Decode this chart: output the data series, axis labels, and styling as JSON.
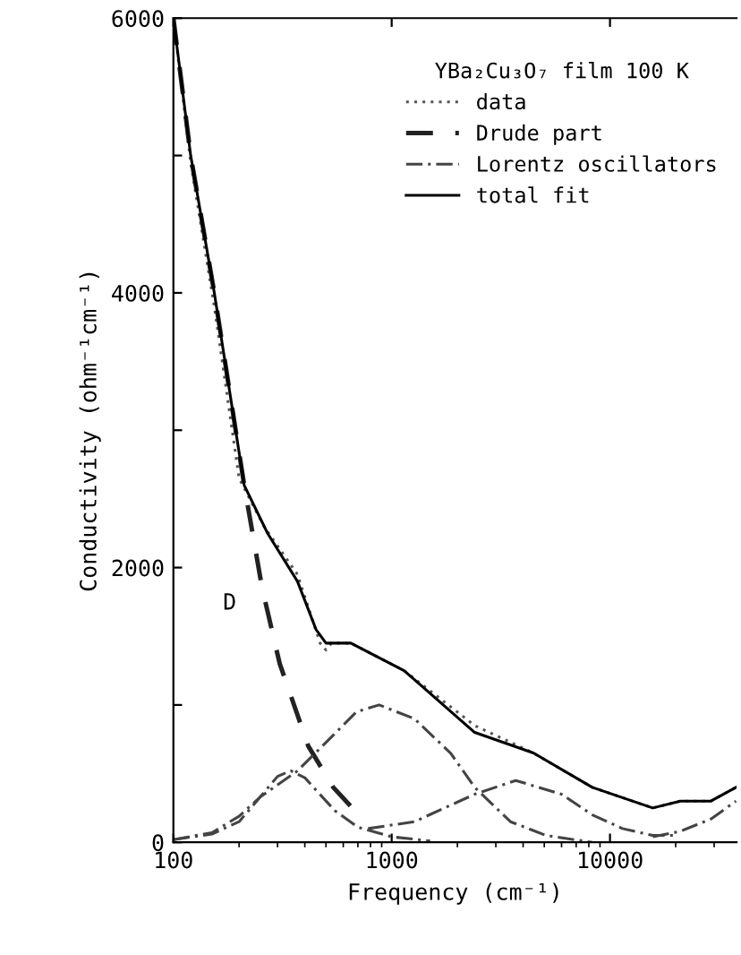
{
  "chart_data": {
    "type": "line",
    "xlabel": "Frequency (cm⁻¹)",
    "ylabel": "Conductivity (ohm⁻¹cm⁻¹)",
    "legend_title": "YBa₂Cu₃O₇ film 100 K",
    "log": "x",
    "xlim": [
      100,
      38000
    ],
    "xticks": [
      100,
      1000,
      10000
    ],
    "ylim": [
      0,
      6000
    ],
    "yticks": [
      0,
      {
        "value": 1000,
        "label": null
      },
      2000,
      {
        "value": 3000,
        "label": null
      },
      4000,
      {
        "value": 5000,
        "label": null
      },
      6000
    ],
    "grid": false,
    "legend": "top right",
    "annotations": [
      "D"
    ],
    "series": [
      {
        "name": "data",
        "color": "#555555",
        "line_style": "dotted",
        "x": [
          100,
          120,
          154,
          200,
          260,
          370,
          470,
          500,
          530,
          650,
          1140,
          2400,
          4460,
          8300,
          15700,
          21000,
          29000,
          37800
        ],
        "values": [
          6000,
          4950,
          3900,
          2650,
          2300,
          1950,
          1450,
          1400,
          1450,
          1450,
          1250,
          850,
          650,
          400,
          250,
          300,
          300,
          400
        ]
      },
      {
        "name": "Drude part",
        "color": "#222222",
        "line_style": "dashed",
        "x": [
          100,
          120,
          154,
          211,
          255,
          307,
          415,
          540,
          755
        ],
        "values": [
          6000,
          5000,
          4000,
          2600,
          1850,
          1300,
          700,
          400,
          150
        ]
      },
      {
        "name": "Lorentz oscillators",
        "color": "#444444",
        "line_style": "dashdot",
        "x": [
          100,
          150,
          200,
          250,
          300,
          345,
          400,
          450,
          550,
          700,
          1000,
          1500
        ],
        "values": [
          20,
          60,
          150,
          330,
          480,
          520,
          470,
          380,
          230,
          110,
          40,
          10
        ]
      },
      {
        "color": "#444444",
        "line_style": "dashdot",
        "x": [
          100,
          150,
          200,
          250,
          370,
          540,
          690,
          876,
          1270,
          1860,
          2400,
          3500,
          5100,
          8300
        ],
        "values": [
          20,
          70,
          190,
          330,
          520,
          780,
          950,
          1000,
          900,
          650,
          400,
          150,
          50,
          0
        ]
      },
      {
        "color": "#444444",
        "line_style": "dashdot",
        "x": [
          780,
          1270,
          2400,
          3700,
          6000,
          8300,
          11400,
          15700,
          20000
        ],
        "values": [
          100,
          150,
          350,
          450,
          350,
          200,
          100,
          50,
          50
        ]
      },
      {
        "color": "#444444",
        "line_style": "dashdot",
        "x": [
          15700,
          21000,
          29000,
          37800
        ],
        "values": [
          40,
          80,
          170,
          300
        ]
      },
      {
        "name": "total fit",
        "color": "#000000",
        "line_style": "solid",
        "x": [
          100,
          120,
          154,
          211,
          270,
          370,
          450,
          500,
          650,
          1140,
          2400,
          4460,
          8300,
          15700,
          21000,
          29000,
          37800
        ],
        "values": [
          6000,
          5000,
          4000,
          2600,
          2250,
          1900,
          1550,
          1450,
          1450,
          1250,
          800,
          650,
          400,
          250,
          300,
          300,
          400
        ]
      }
    ]
  }
}
